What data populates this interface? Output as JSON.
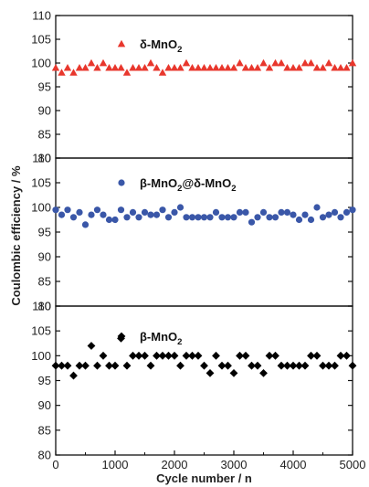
{
  "chart_data": {
    "type": "scatter",
    "xlabel": "Cycle number / n",
    "ylabel": "Coulombic efficiency / %",
    "xlim": [
      0,
      5000
    ],
    "x_ticks": [
      "0",
      "1000",
      "2000",
      "3000",
      "4000",
      "5000"
    ],
    "grid": false,
    "panels": [
      {
        "ylim": [
          80,
          110
        ],
        "y_ticks": [
          "80",
          "85",
          "90",
          "95",
          "100",
          "105",
          "110"
        ],
        "series": [
          {
            "name": "δ-MnO2",
            "name_parts": {
              "base": "δ-MnO",
              "sub": "2"
            },
            "marker": "triangle",
            "color": "#e8372d",
            "x": [
              0,
              100,
              200,
              300,
              400,
              500,
              600,
              700,
              800,
              900,
              1000,
              1100,
              1200,
              1300,
              1400,
              1500,
              1600,
              1700,
              1800,
              1900,
              2000,
              2100,
              2200,
              2300,
              2400,
              2500,
              2600,
              2700,
              2800,
              2900,
              3000,
              3100,
              3200,
              3300,
              3400,
              3500,
              3600,
              3700,
              3800,
              3900,
              4000,
              4100,
              4200,
              4300,
              4400,
              4500,
              4600,
              4700,
              4800,
              4900,
              5000
            ],
            "y": [
              99,
              98,
              99,
              98,
              99,
              99,
              100,
              99,
              100,
              99,
              99,
              99,
              98,
              99,
              99,
              99,
              100,
              99,
              98,
              99,
              99,
              99,
              100,
              99,
              99,
              99,
              99,
              99,
              99,
              99,
              99,
              100,
              99,
              99,
              99,
              100,
              99,
              100,
              100,
              99,
              99,
              99,
              100,
              100,
              99,
              99,
              100,
              99,
              99,
              99,
              100
            ]
          }
        ]
      },
      {
        "ylim": [
          80,
          110
        ],
        "y_ticks": [
          "80",
          "85",
          "90",
          "95",
          "100",
          "105",
          "110"
        ],
        "series": [
          {
            "name": "β-MnO2@δ-MnO2",
            "name_parts": {
              "base1": "β-MnO",
              "sub1": "2",
              "mid": "@δ-MnO",
              "sub2": "2"
            },
            "marker": "circle",
            "color": "#3a57a8",
            "x": [
              0,
              100,
              200,
              300,
              400,
              500,
              600,
              700,
              800,
              900,
              1000,
              1100,
              1200,
              1300,
              1400,
              1500,
              1600,
              1700,
              1800,
              1900,
              2000,
              2100,
              2200,
              2300,
              2400,
              2500,
              2600,
              2700,
              2800,
              2900,
              3000,
              3100,
              3200,
              3300,
              3400,
              3500,
              3600,
              3700,
              3800,
              3900,
              4000,
              4100,
              4200,
              4300,
              4400,
              4500,
              4600,
              4700,
              4800,
              4900,
              5000
            ],
            "y": [
              99.5,
              98.5,
              99.5,
              98,
              99,
              96.5,
              98.5,
              99.5,
              98.5,
              97.5,
              97.5,
              99.5,
              98,
              99,
              98,
              99,
              98.5,
              98.5,
              99.5,
              98,
              99,
              100,
              98,
              98,
              98,
              98,
              98,
              99,
              98,
              98,
              98,
              99,
              99,
              97,
              98,
              99,
              98,
              98,
              99,
              99,
              98.5,
              97.5,
              98.5,
              97.5,
              100,
              98,
              98.5,
              99,
              98,
              99,
              99.5
            ]
          }
        ]
      },
      {
        "ylim": [
          80,
          110
        ],
        "y_ticks": [
          "80",
          "85",
          "90",
          "95",
          "100",
          "105",
          "110"
        ],
        "series": [
          {
            "name": "β-MnO2",
            "name_parts": {
              "base": "β-MnO",
              "sub": "2"
            },
            "marker": "diamond",
            "color": "#000000",
            "x": [
              0,
              100,
              200,
              300,
              400,
              500,
              600,
              700,
              800,
              900,
              1000,
              1100,
              1200,
              1300,
              1400,
              1500,
              1600,
              1700,
              1800,
              1900,
              2000,
              2100,
              2200,
              2300,
              2400,
              2500,
              2600,
              2700,
              2800,
              2900,
              3000,
              3100,
              3200,
              3300,
              3400,
              3500,
              3600,
              3700,
              3800,
              3900,
              4000,
              4100,
              4200,
              4300,
              4400,
              4500,
              4600,
              4700,
              4800,
              4900,
              5000
            ],
            "y": [
              98,
              98,
              98,
              96,
              98,
              98,
              102,
              98,
              100,
              98,
              98,
              103.5,
              98,
              100,
              100,
              100,
              98,
              100,
              100,
              100,
              100,
              98,
              100,
              100,
              100,
              98,
              96.5,
              100,
              98,
              98,
              96.5,
              100,
              100,
              98,
              98,
              96.5,
              100,
              100,
              98,
              98,
              98,
              98,
              98,
              100,
              100,
              98,
              98,
              98,
              100,
              100,
              98
            ]
          }
        ]
      }
    ]
  }
}
